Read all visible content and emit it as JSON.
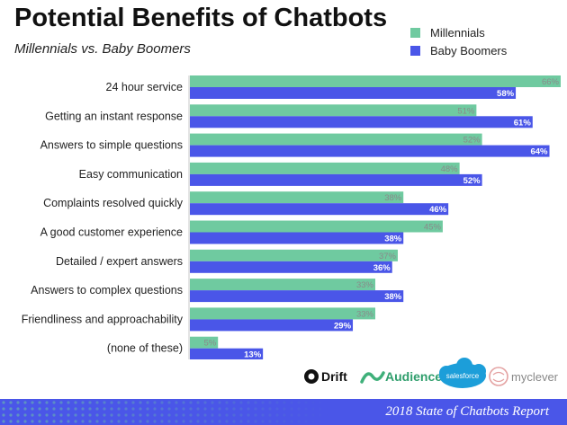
{
  "chart_data": {
    "type": "bar",
    "orientation": "horizontal",
    "title": "Potential Benefits of Chatbots",
    "subtitle": "Millennials vs. Baby Boomers",
    "legend_position": "top-right",
    "xlim": [
      0,
      66
    ],
    "categories": [
      "24 hour service",
      "Getting an instant response",
      "Answers to simple questions",
      "Easy communication",
      "Complaints resolved quickly",
      "A good customer experience",
      "Detailed / expert answers",
      "Answers to complex questions",
      "Friendliness and approachability",
      "(none of these)"
    ],
    "series": [
      {
        "name": "Millennials",
        "color": "#6fcaa0",
        "values": [
          66,
          51,
          52,
          48,
          38,
          45,
          37,
          33,
          33,
          5
        ]
      },
      {
        "name": "Baby Boomers",
        "color": "#4a56e8",
        "values": [
          58,
          61,
          64,
          52,
          46,
          38,
          36,
          38,
          29,
          13
        ]
      }
    ]
  },
  "logos": {
    "drift": "Drift",
    "audience": "Audience",
    "salesforce": "salesforce",
    "myclever": "myclever"
  },
  "footer": {
    "text": "2018 State of Chatbots Report"
  },
  "colors": {
    "millennials": "#6fcaa0",
    "boomers": "#4a56e8",
    "footer_bg": "#4a56e8"
  }
}
